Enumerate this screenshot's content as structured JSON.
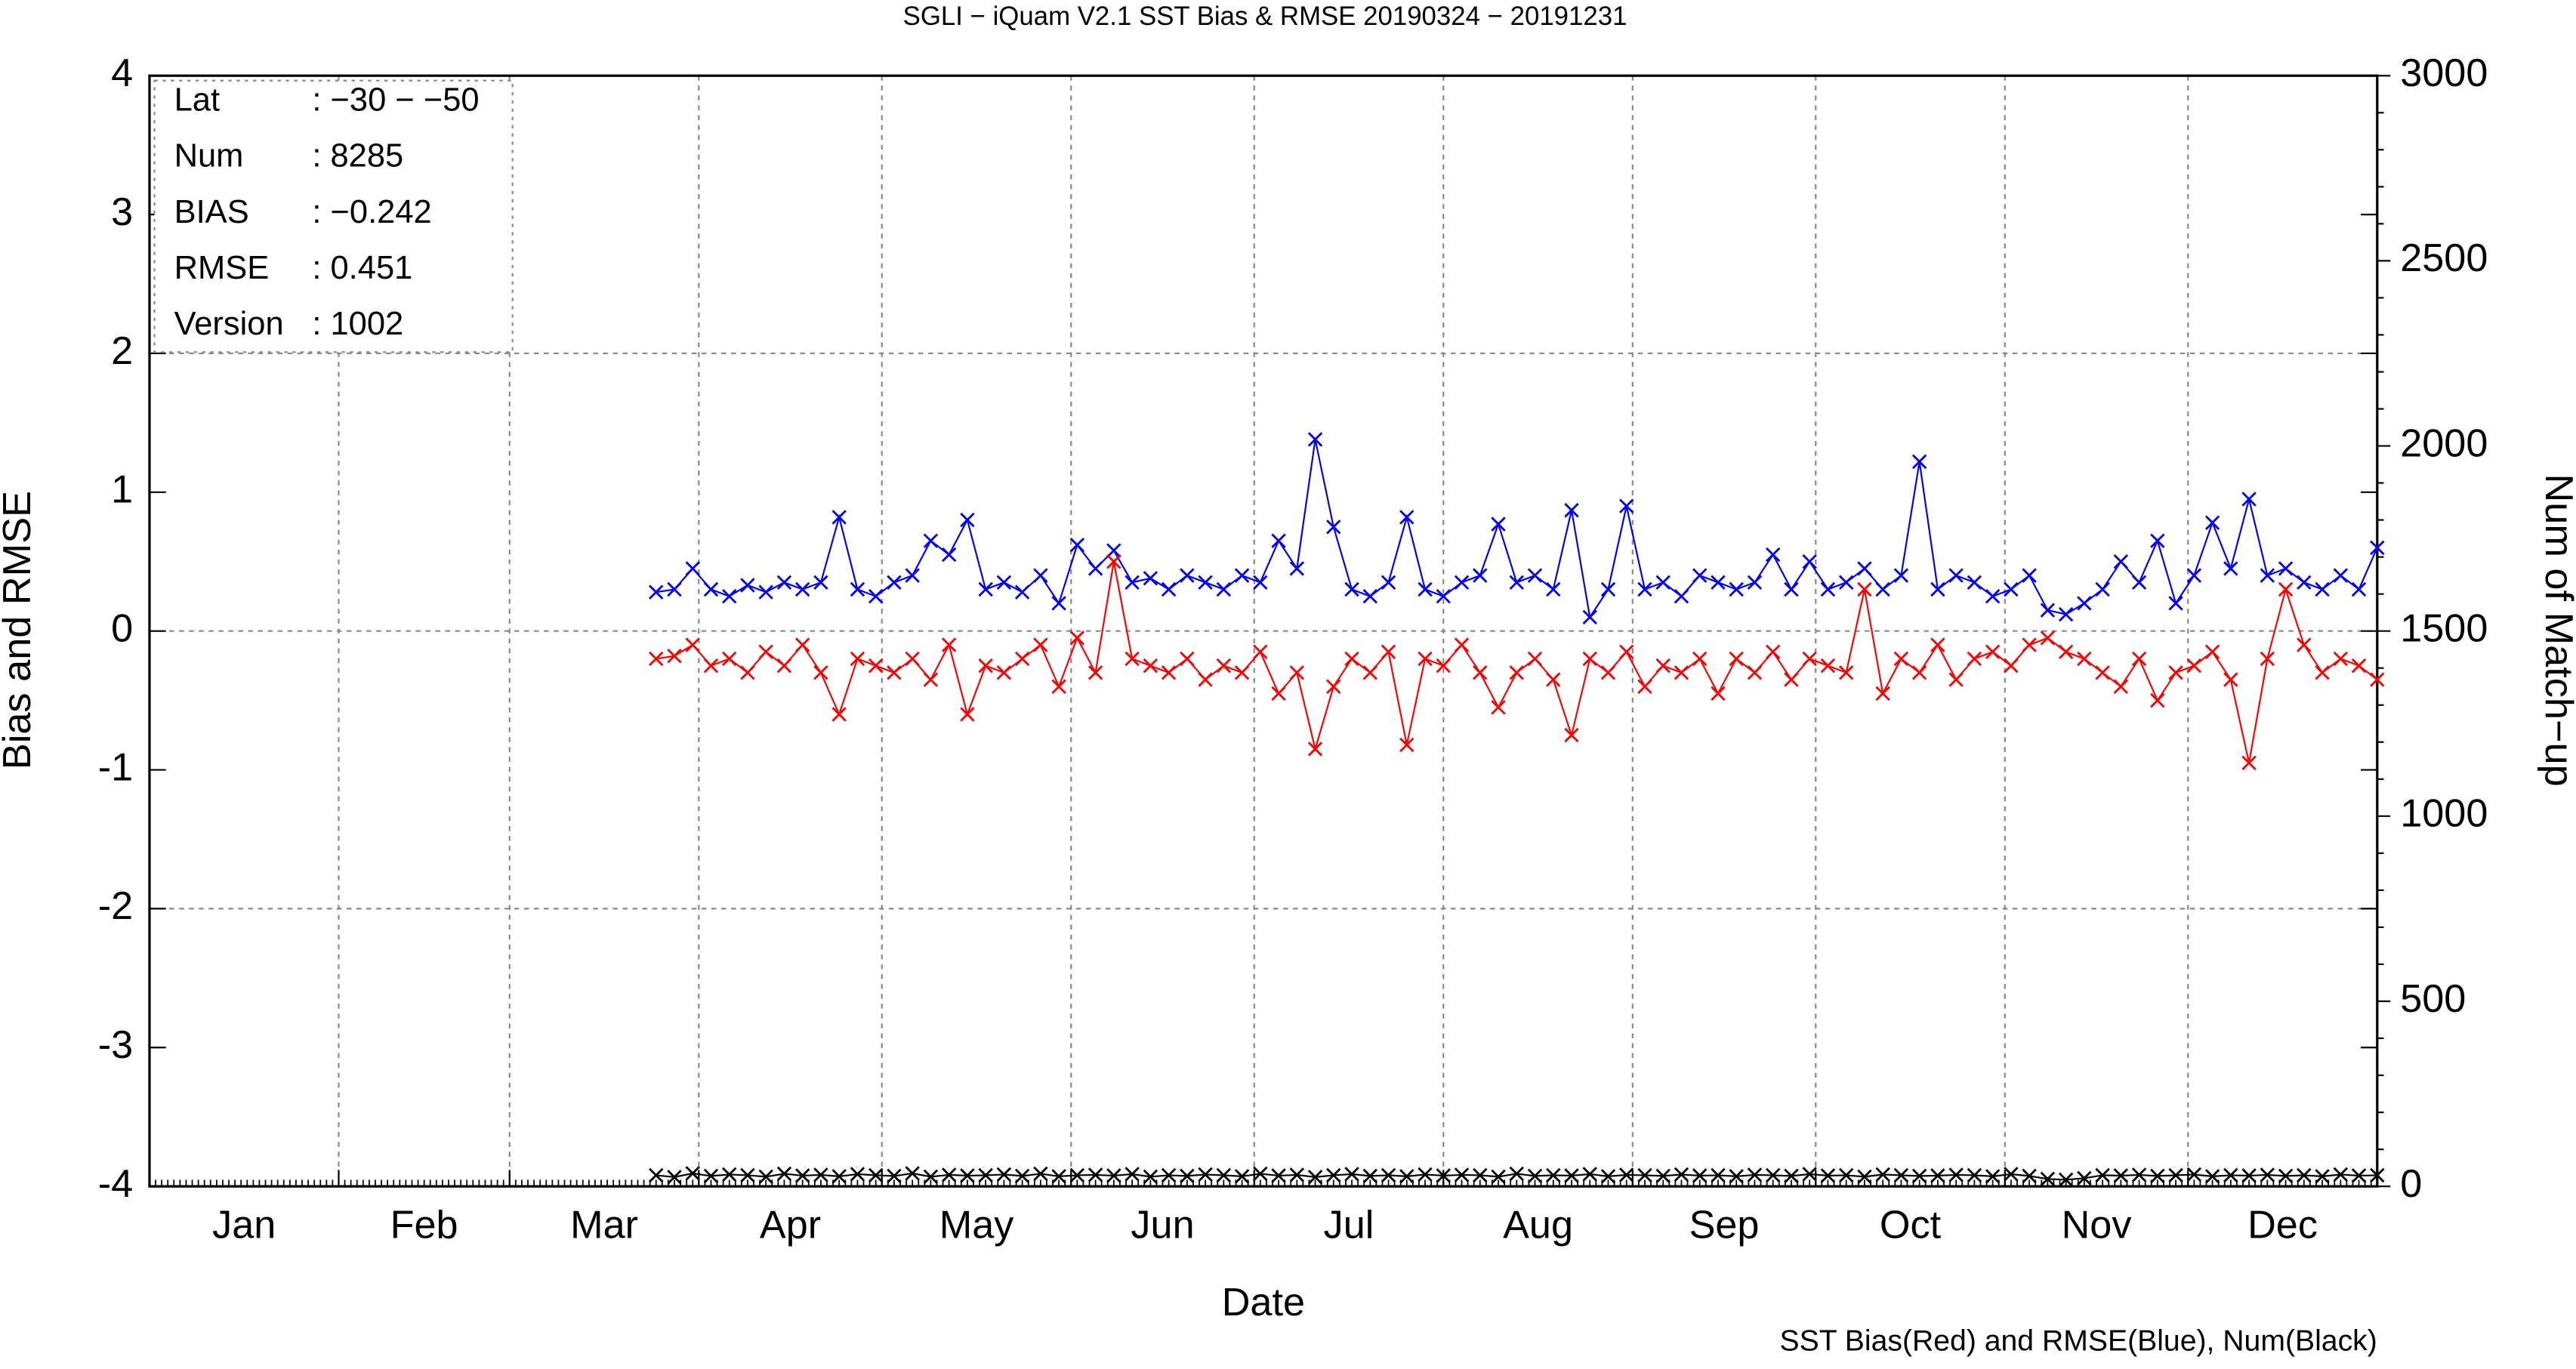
{
  "chart_data": {
    "type": "line",
    "title": "SGLI − iQuam V2.1 SST Bias & RMSE 20190324 − 20191231",
    "x_label": "Date",
    "y_label": "Bias and RMSE",
    "y2_label": "Num of Match−up",
    "footnote": "SST Bias(Red) and RMSE(Blue), Num(Black)",
    "info": [
      [
        "Lat",
        ": −30 − −50"
      ],
      [
        "Num",
        ": 8285"
      ],
      [
        "BIAS",
        ": −0.242"
      ],
      [
        "RMSE",
        ": 0.451"
      ],
      [
        "Version",
        ": 1002"
      ]
    ],
    "xlim": [
      0,
      365
    ],
    "xticks": [
      {
        "value": 15.5,
        "label": "Jan"
      },
      {
        "value": 45,
        "label": "Feb"
      },
      {
        "value": 74.5,
        "label": "Mar"
      },
      {
        "value": 105,
        "label": "Apr"
      },
      {
        "value": 135.5,
        "label": "May"
      },
      {
        "value": 166,
        "label": "Jun"
      },
      {
        "value": 196.5,
        "label": "Jul"
      },
      {
        "value": 227.5,
        "label": "Aug"
      },
      {
        "value": 258,
        "label": "Sep"
      },
      {
        "value": 288.5,
        "label": "Oct"
      },
      {
        "value": 319,
        "label": "Nov"
      },
      {
        "value": 349.5,
        "label": "Dec"
      }
    ],
    "xgrid": [
      31,
      59,
      90,
      120,
      151,
      181,
      212,
      243,
      273,
      304,
      334
    ],
    "ylim": [
      -4,
      4
    ],
    "yticks": [
      -4,
      -3,
      -2,
      -1,
      0,
      1,
      2,
      3,
      4
    ],
    "ygrid": [
      -2,
      0,
      2
    ],
    "y2lim": [
      0,
      3000
    ],
    "y2ticks": [
      0,
      500,
      1000,
      1500,
      2000,
      2500,
      3000
    ],
    "x": [
      83,
      86,
      89,
      92,
      95,
      98,
      101,
      104,
      107,
      110,
      113,
      116,
      119,
      122,
      125,
      128,
      131,
      134,
      137,
      140,
      143,
      146,
      149,
      152,
      155,
      158,
      161,
      164,
      167,
      170,
      173,
      176,
      179,
      182,
      185,
      188,
      191,
      194,
      197,
      200,
      203,
      206,
      209,
      212,
      215,
      218,
      221,
      224,
      227,
      230,
      233,
      236,
      239,
      242,
      245,
      248,
      251,
      254,
      257,
      260,
      263,
      266,
      269,
      272,
      275,
      278,
      281,
      284,
      287,
      290,
      293,
      296,
      299,
      302,
      305,
      308,
      311,
      314,
      317,
      320,
      323,
      326,
      329,
      332,
      335,
      338,
      341,
      344,
      347,
      350,
      353,
      356,
      359,
      362,
      365
    ],
    "series": [
      {
        "name": "RMSE",
        "color": "#0000ff",
        "values": [
          0.28,
          0.3,
          0.45,
          0.3,
          0.25,
          0.33,
          0.28,
          0.35,
          0.3,
          0.35,
          0.82,
          0.3,
          0.25,
          0.35,
          0.4,
          0.65,
          0.55,
          0.8,
          0.3,
          0.35,
          0.28,
          0.4,
          0.2,
          0.62,
          0.45,
          0.58,
          0.35,
          0.38,
          0.3,
          0.4,
          0.35,
          0.3,
          0.4,
          0.35,
          0.65,
          0.45,
          1.38,
          0.75,
          0.3,
          0.25,
          0.35,
          0.82,
          0.3,
          0.25,
          0.35,
          0.4,
          0.77,
          0.35,
          0.4,
          0.3,
          0.87,
          0.1,
          0.3,
          0.9,
          0.3,
          0.35,
          0.25,
          0.4,
          0.35,
          0.3,
          0.35,
          0.55,
          0.3,
          0.5,
          0.3,
          0.35,
          0.45,
          0.3,
          0.4,
          1.22,
          0.3,
          0.4,
          0.35,
          0.25,
          0.3,
          0.4,
          0.15,
          0.12,
          0.2,
          0.3,
          0.5,
          0.35,
          0.65,
          0.2,
          0.4,
          0.78,
          0.45,
          0.95,
          0.4,
          0.45,
          0.35,
          0.3,
          0.4,
          0.3,
          0.6
        ]
      },
      {
        "name": "BIAS",
        "color": "#ff0000",
        "values": [
          -0.2,
          -0.18,
          -0.1,
          -0.25,
          -0.2,
          -0.3,
          -0.15,
          -0.25,
          -0.1,
          -0.3,
          -0.6,
          -0.2,
          -0.25,
          -0.3,
          -0.2,
          -0.35,
          -0.1,
          -0.6,
          -0.25,
          -0.3,
          -0.2,
          -0.1,
          -0.4,
          -0.05,
          -0.3,
          0.5,
          -0.2,
          -0.25,
          -0.3,
          -0.2,
          -0.35,
          -0.25,
          -0.3,
          -0.15,
          -0.45,
          -0.3,
          -0.85,
          -0.4,
          -0.2,
          -0.3,
          -0.15,
          -0.82,
          -0.2,
          -0.25,
          -0.1,
          -0.3,
          -0.55,
          -0.3,
          -0.2,
          -0.35,
          -0.75,
          -0.2,
          -0.3,
          -0.15,
          -0.4,
          -0.25,
          -0.3,
          -0.2,
          -0.45,
          -0.2,
          -0.3,
          -0.15,
          -0.35,
          -0.2,
          -0.25,
          -0.3,
          0.3,
          -0.45,
          -0.2,
          -0.3,
          -0.1,
          -0.35,
          -0.2,
          -0.15,
          -0.25,
          -0.1,
          -0.05,
          -0.15,
          -0.2,
          -0.3,
          -0.4,
          -0.2,
          -0.5,
          -0.3,
          -0.25,
          -0.15,
          -0.35,
          -0.95,
          -0.2,
          0.3,
          -0.1,
          -0.3,
          -0.2,
          -0.25,
          -0.35
        ]
      },
      {
        "name": "Num",
        "color": "#000000",
        "axis": "y2",
        "values": [
          30,
          25,
          35,
          28,
          32,
          30,
          26,
          34,
          29,
          31,
          27,
          33,
          30,
          28,
          35,
          26,
          31,
          29,
          30,
          32,
          28,
          34,
          27,
          30,
          31,
          29,
          33,
          26,
          30,
          28,
          32,
          30,
          27,
          34,
          29,
          31,
          25,
          30,
          33,
          28,
          30,
          27,
          32,
          29,
          31,
          30,
          26,
          34,
          28,
          30,
          29,
          33,
          27,
          31,
          30,
          28,
          32,
          29,
          30,
          27,
          31,
          30,
          28,
          33,
          29,
          30,
          26,
          32,
          30,
          28,
          29,
          31,
          30,
          27,
          33,
          28,
          20,
          18,
          22,
          30,
          29,
          31,
          28,
          30,
          32,
          27,
          30,
          29,
          31,
          28,
          30,
          27,
          32,
          29,
          30
        ]
      }
    ]
  }
}
